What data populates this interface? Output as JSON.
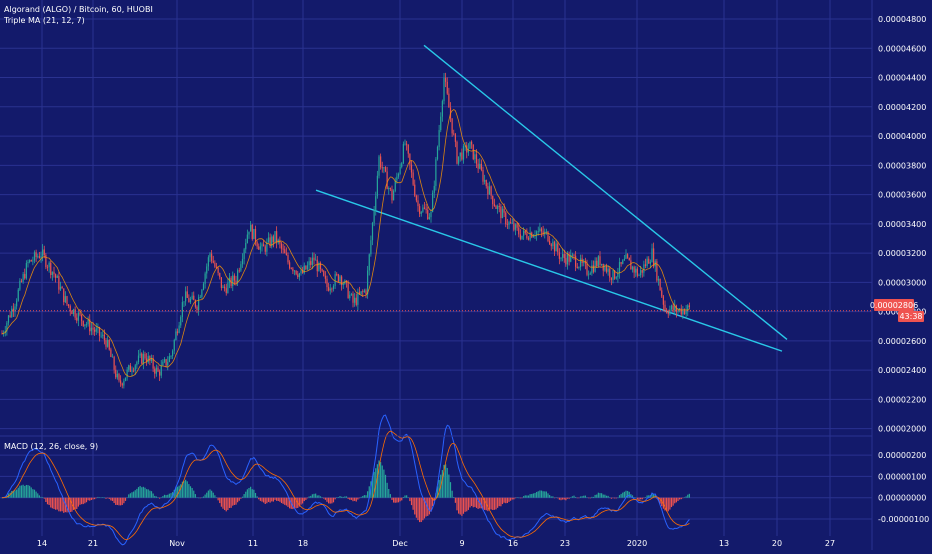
{
  "colors": {
    "background": "#131a6b",
    "grid": "#2a3290",
    "up_candle": "#26a69a",
    "down_candle": "#ef5350",
    "ma_line": "#ff9800",
    "trendline": "#29c8e8",
    "price_line": "#ef5350",
    "macd_line": "#2962ff",
    "signal_line": "#ff6d00",
    "hist_up": "#26a69a",
    "hist_down": "#ef5350",
    "axis_text": "#ffffff"
  },
  "chart_data": {
    "type": "line",
    "title": "Algorand (ALGO) / Bitcoin, 60, HUOBI",
    "indicator": "Triple MA (21, 12, 7)",
    "macd_label": "MACD (12, 26, close, 9)",
    "grid": true,
    "price_scale": "right",
    "x_ticks": [
      "14",
      "21",
      "Nov",
      "11",
      "18",
      "Dec",
      "9",
      "16",
      "23",
      "2020",
      "13",
      "20",
      "27"
    ],
    "y_ticks": [
      "0.00004800",
      "0.00004600",
      "0.00004400",
      "0.00004200",
      "0.00004000",
      "0.00003800",
      "0.00003600",
      "0.00003400",
      "0.00003200",
      "0.00003000",
      "0.00002800",
      "0.00002600",
      "0.00002400",
      "0.00002200",
      "0.00002000"
    ],
    "ylim": [
      1.95e-05,
      4.93e-05
    ],
    "macd_ticks": [
      "0.00000200",
      "0.00000100",
      "0.00000000",
      "-0.00000100"
    ],
    "macd_ylim": [
      -1.8e-06,
      2.9e-06
    ],
    "last_price": "0.00002806",
    "countdown": "43:38",
    "price_series": [
      2.65e-05,
      2.87e-05,
      3.13e-05,
      3.2e-05,
      3.06e-05,
      2.85e-05,
      2.76e-05,
      2.68e-05,
      2.6e-05,
      2.3e-05,
      2.43e-05,
      2.5e-05,
      2.38e-05,
      2.5e-05,
      2.9e-05,
      2.85e-05,
      3.2e-05,
      2.95e-05,
      3.03e-05,
      3.38e-05,
      3.22e-05,
      3.31e-05,
      3.14e-05,
      3.05e-05,
      3.16e-05,
      2.97e-05,
      3.05e-05,
      2.86e-05,
      2.95e-05,
      3.85e-05,
      3.58e-05,
      3.95e-05,
      3.52e-05,
      3.46e-05,
      4.4e-05,
      3.85e-05,
      3.93e-05,
      3.72e-05,
      3.52e-05,
      3.4e-05,
      3.32e-05,
      3.35e-05,
      3.32e-05,
      3.17e-05,
      3.16e-05,
      3.08e-05,
      3.15e-05,
      3.04e-05,
      3.15e-05,
      3.05e-05,
      3.2e-05,
      2.82e-05,
      2.81e-05,
      2.82e-05
    ],
    "trendlines": [
      {
        "name": "upper",
        "start": [
          4.62e-05,
          59
        ],
        "end": [
          2.61e-05,
          109
        ]
      },
      {
        "name": "lower",
        "start": [
          3.63e-05,
          43
        ],
        "end": [
          2.53e-05,
          109
        ]
      }
    ]
  }
}
